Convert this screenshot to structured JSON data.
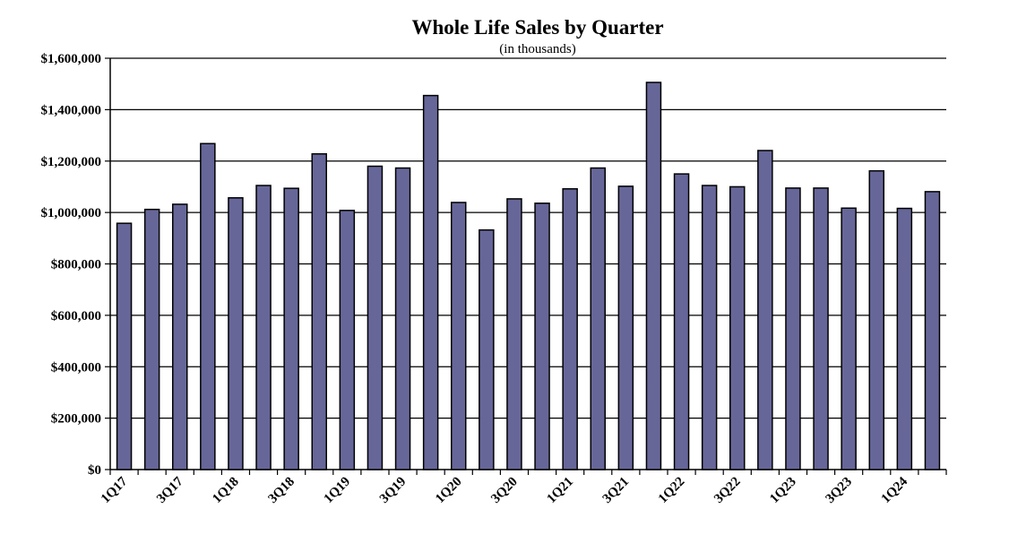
{
  "chart_data": {
    "type": "bar",
    "title": "Whole Life Sales by Quarter",
    "subtitle": "(in thousands)",
    "xlabel": "",
    "ylabel": "",
    "ylim": [
      0,
      1600000
    ],
    "y_ticks": [
      "$0",
      "$200,000",
      "$400,000",
      "$600,000",
      "$800,000",
      "$1,000,000",
      "$1,200,000",
      "$1,400,000",
      "$1,600,000"
    ],
    "grid": true,
    "bar_color": "#666699",
    "categories": [
      "1Q17",
      "2Q17",
      "3Q17",
      "4Q17",
      "1Q18",
      "2Q18",
      "3Q18",
      "4Q18",
      "1Q19",
      "2Q19",
      "3Q19",
      "4Q19",
      "1Q20",
      "2Q20",
      "3Q20",
      "4Q20",
      "1Q21",
      "2Q21",
      "3Q21",
      "4Q21",
      "1Q22",
      "2Q22",
      "3Q22",
      "4Q22",
      "1Q23",
      "2Q23",
      "3Q23",
      "4Q23",
      "1Q24",
      "2Q24"
    ],
    "x_tick_labels": [
      "1Q17",
      "3Q17",
      "1Q18",
      "3Q18",
      "1Q19",
      "3Q19",
      "1Q20",
      "3Q20",
      "1Q21",
      "3Q21",
      "1Q22",
      "3Q22",
      "1Q23",
      "3Q23",
      "1Q24"
    ],
    "values": [
      958000,
      1012000,
      1032000,
      1268000,
      1057000,
      1105000,
      1094000,
      1228000,
      1008000,
      1180000,
      1173000,
      1455000,
      1039000,
      932000,
      1053000,
      1036000,
      1092000,
      1173000,
      1102000,
      1506000,
      1150000,
      1105000,
      1100000,
      1241000,
      1095000,
      1095000,
      1017000,
      1162000,
      1016000,
      1081000
    ]
  }
}
